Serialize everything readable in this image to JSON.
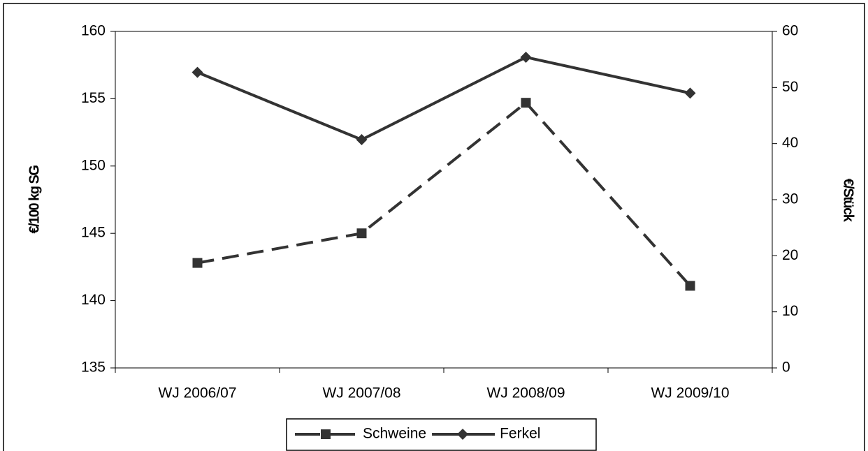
{
  "chart_data": {
    "type": "line",
    "y_label": "€/100 kg SG",
    "y2_label": "€/Stück",
    "categories": [
      "WJ 2006/07",
      "WJ 2007/08",
      "WJ 2008/09",
      "WJ 2009/10"
    ],
    "series": [
      {
        "name": "Schweine",
        "color": "#333333",
        "dash": true,
        "marker": "square",
        "values": [
          142.8,
          145.0,
          154.7,
          141.1
        ]
      },
      {
        "name": "Ferkel",
        "color": "#333333",
        "dash": false,
        "marker": "diamond",
        "axis": "y2",
        "values": [
          52.7,
          40.7,
          55.4,
          49.0
        ]
      }
    ],
    "ylim": [
      135,
      160
    ],
    "yticks": [
      135,
      140,
      145,
      150,
      155,
      160
    ],
    "y2lim": [
      0,
      60
    ],
    "y2ticks": [
      0,
      10,
      20,
      30,
      40,
      50,
      60
    ],
    "legend": "bottom",
    "grid": false
  }
}
